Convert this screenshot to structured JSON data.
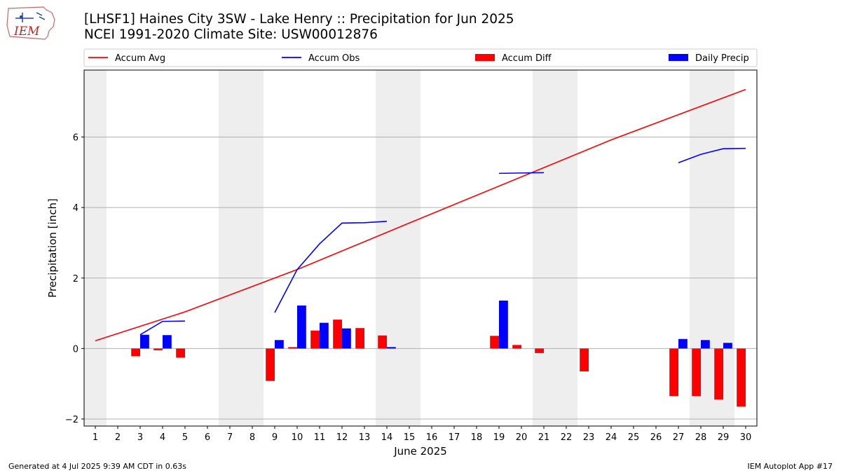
{
  "header": {
    "title_line1": "[LHSF1] Haines City 3SW - Lake Henry :: Precipitation for Jun 2025",
    "title_line2": "NCEI 1991-2020 Climate Site: USW00012876",
    "logo_text": "IEM"
  },
  "footer": {
    "left": "Generated at 4 Jul 2025 9:39 AM CDT in 0.63s",
    "right": "IEM Autoplot App #17"
  },
  "colors": {
    "avg": "#ff0000",
    "obs": "#0000ff",
    "diff": "#ff0000",
    "daily": "#0000ff",
    "weekend_band": "#eeeeee",
    "grid": "#b0b0b0"
  },
  "chart_data": {
    "type": "bar",
    "title": "[LHSF1] Haines City 3SW - Lake Henry :: Precipitation for Jun 2025",
    "xlabel": "June 2025",
    "ylabel": "Precipitation [inch]",
    "xlim": [
      0.5,
      30.5
    ],
    "ylim": [
      -2.2,
      7.9
    ],
    "yticks": [
      -2,
      0,
      2,
      4,
      6
    ],
    "xticks": [
      1,
      2,
      3,
      4,
      5,
      6,
      7,
      8,
      9,
      10,
      11,
      12,
      13,
      14,
      15,
      16,
      17,
      18,
      19,
      20,
      21,
      22,
      23,
      24,
      25,
      26,
      27,
      28,
      29,
      30
    ],
    "grid": "y",
    "legend_placement": "top",
    "weekend_days": [
      1,
      7,
      8,
      14,
      15,
      21,
      22,
      28,
      29
    ],
    "legend": [
      "Accum Avg",
      "Accum Obs",
      "Accum Diff",
      "Daily Precip"
    ],
    "series": [
      {
        "name": "Accum Avg",
        "kind": "line",
        "x": [
          1,
          5,
          10,
          15,
          20,
          24,
          30
        ],
        "y": [
          0.22,
          1.04,
          2.24,
          3.56,
          4.87,
          5.92,
          7.35
        ]
      },
      {
        "name": "Accum Obs",
        "kind": "line-segments",
        "segments": [
          {
            "x": [
              3,
              4,
              5
            ],
            "y": [
              0.39,
              0.77,
              0.78
            ]
          },
          {
            "x": [
              9,
              10,
              11,
              12,
              13,
              14
            ],
            "y": [
              1.02,
              2.24,
              2.97,
              3.56,
              3.57,
              3.61
            ]
          },
          {
            "x": [
              19,
              20,
              21
            ],
            "y": [
              4.97,
              4.98,
              4.99
            ]
          },
          {
            "x": [
              27,
              28,
              29,
              30
            ],
            "y": [
              5.27,
              5.51,
              5.67,
              5.68
            ]
          }
        ]
      },
      {
        "name": "Accum Diff",
        "kind": "bar",
        "x": [
          3,
          4,
          5,
          9,
          10,
          11,
          12,
          13,
          14,
          19,
          20,
          21,
          23,
          27,
          28,
          29,
          30
        ],
        "values": [
          -0.22,
          -0.05,
          -0.26,
          -0.92,
          0.04,
          0.51,
          0.82,
          0.58,
          0.37,
          0.36,
          0.1,
          -0.13,
          -0.65,
          -1.35,
          -1.35,
          -1.45,
          -1.65
        ]
      },
      {
        "name": "Daily Precip",
        "kind": "bar",
        "x": [
          3,
          4,
          9,
          10,
          11,
          12,
          14,
          19,
          27,
          28,
          29
        ],
        "values": [
          0.39,
          0.38,
          0.24,
          1.22,
          0.73,
          0.57,
          0.04,
          1.36,
          0.27,
          0.24,
          0.16
        ]
      }
    ]
  }
}
